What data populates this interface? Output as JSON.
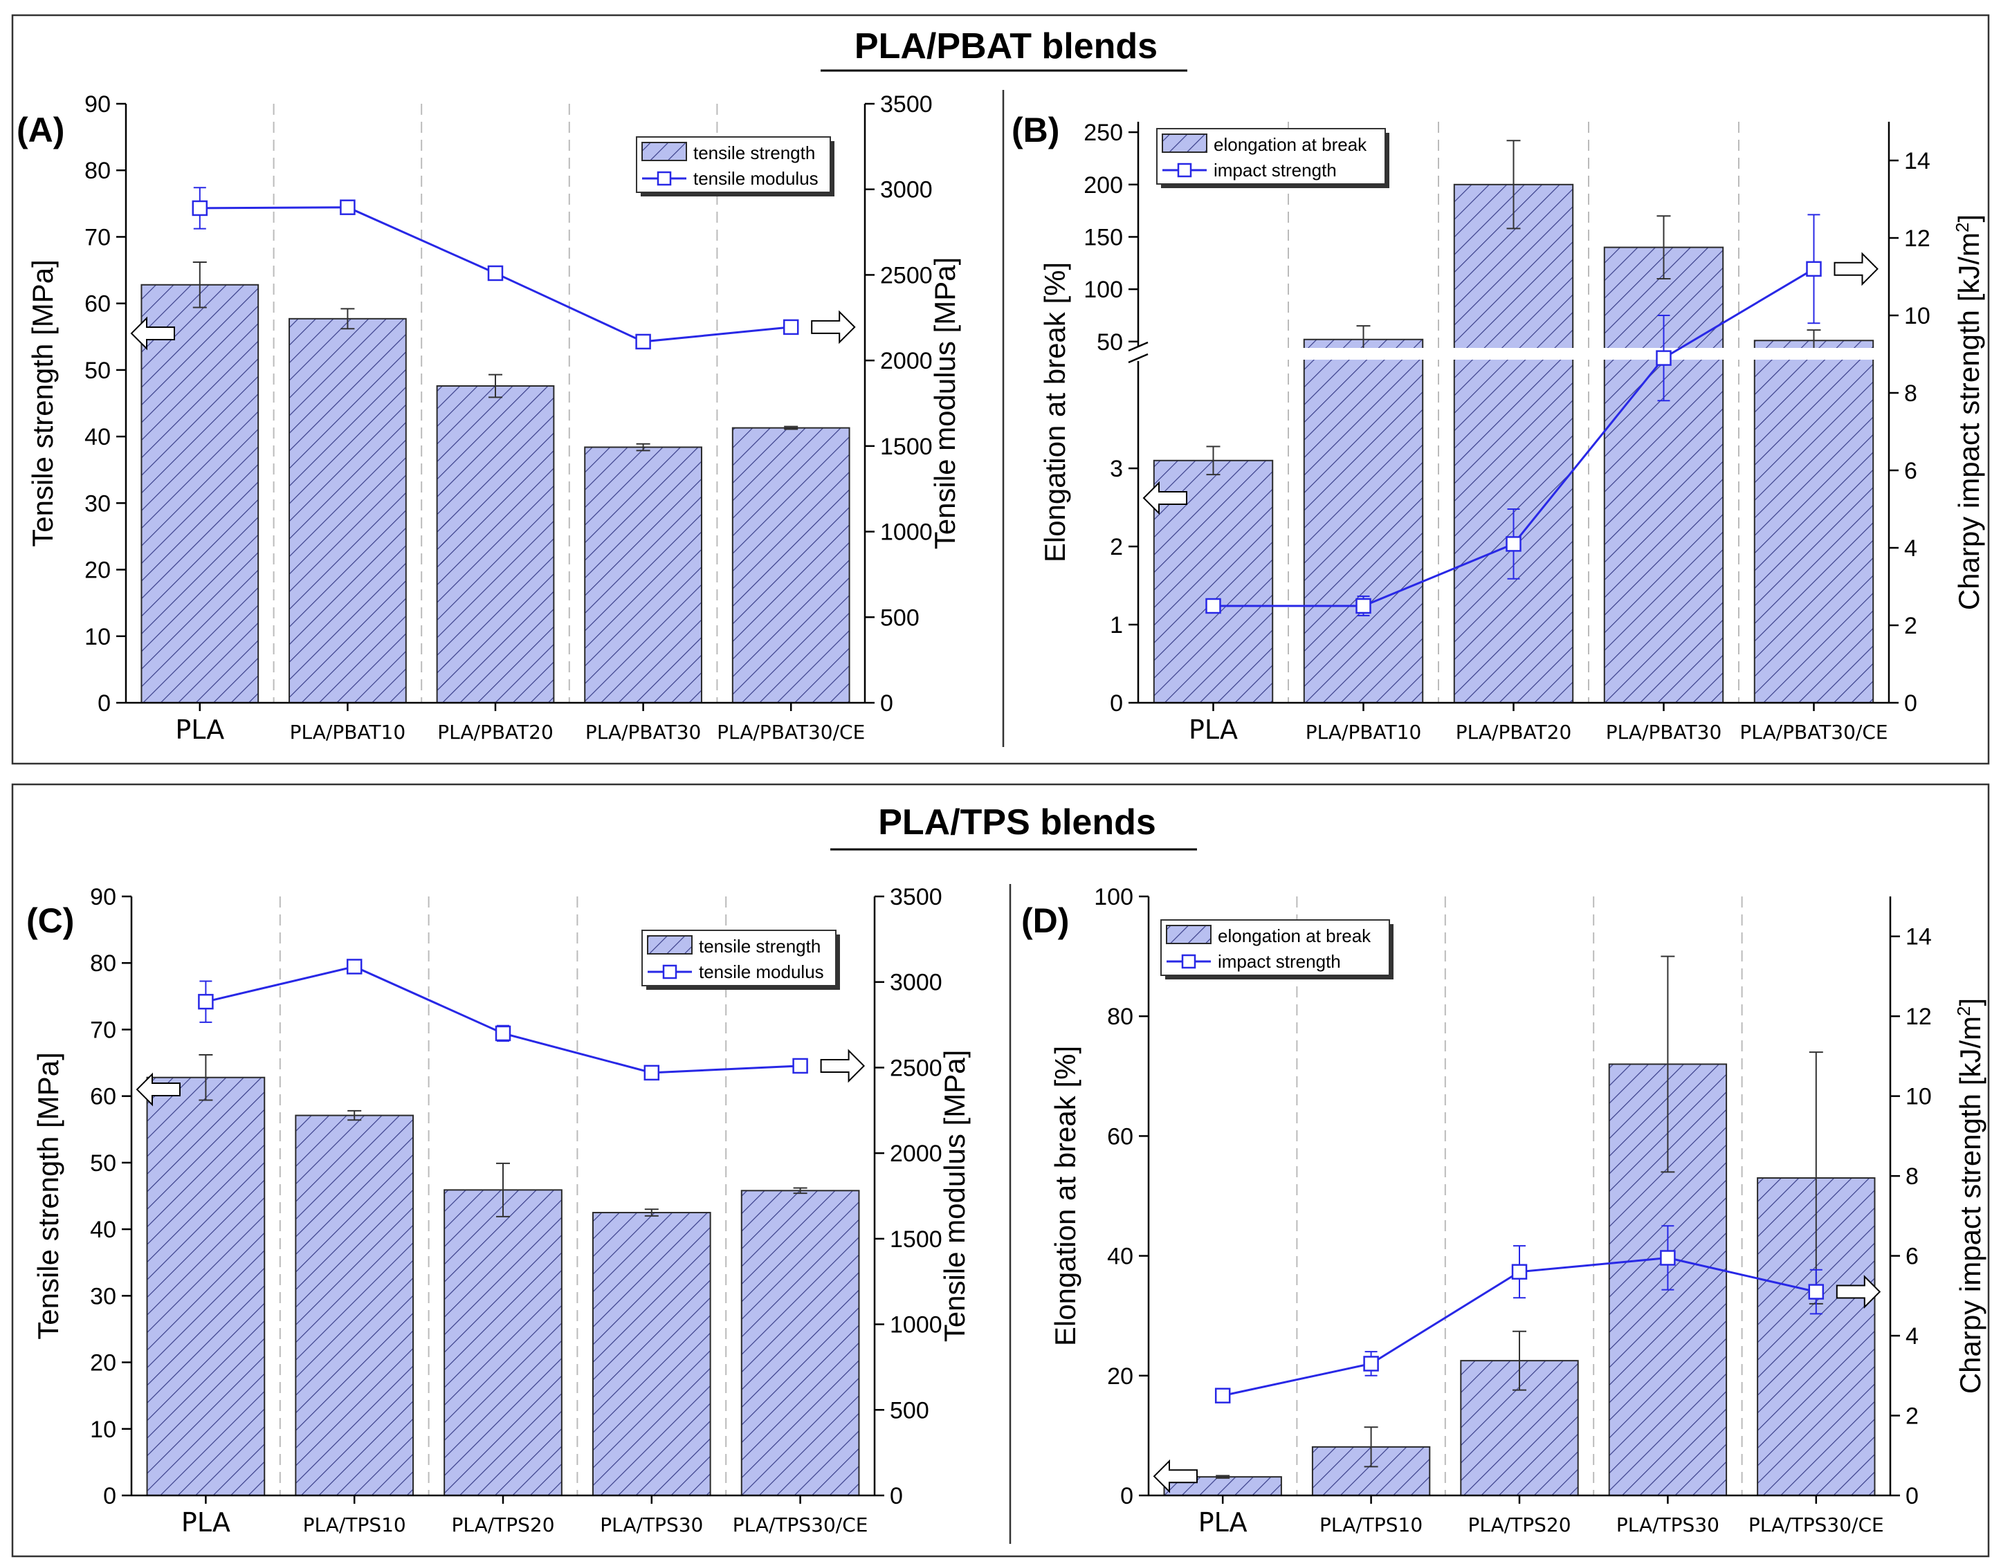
{
  "sections": [
    {
      "title": "PLA/PBAT blends"
    },
    {
      "title": "PLA/TPS blends"
    }
  ],
  "colors": {
    "bar_fill": "#b8bff0",
    "bar_hatch": "#3a3f8a",
    "bar_edge": "#2a2a2a",
    "line": "#2828e6",
    "error": "#333333",
    "divider": "#bbbbbb"
  },
  "chart_data": [
    {
      "panel": "(A)",
      "type": "bar+line",
      "categories": [
        "PLA",
        "PLA/PBAT10",
        "PLA/PBAT20",
        "PLA/PBAT30",
        "PLA/PBAT30/CE"
      ],
      "ylabel": "Tensile strength [MPa]",
      "y2label": "Tensile modulus [MPa]",
      "ylim": [
        0,
        90
      ],
      "yticks": [
        0,
        10,
        20,
        30,
        40,
        50,
        60,
        70,
        80,
        90
      ],
      "y2lim": [
        0,
        3500
      ],
      "y2ticks": [
        0,
        500,
        1000,
        1500,
        2000,
        2500,
        3000,
        3500
      ],
      "bars": {
        "name": "tensile strength",
        "values": [
          62.8,
          57.7,
          47.6,
          38.4,
          41.3
        ],
        "errors": [
          3.4,
          1.5,
          1.7,
          0.5,
          0.2
        ]
      },
      "line": {
        "name": "tensile modulus",
        "values": [
          2890,
          2895,
          2510,
          2110,
          2195
        ],
        "errors": [
          120,
          20,
          15,
          35,
          25
        ]
      },
      "legend": "top-right",
      "arrows": {
        "left_at": 55.5,
        "right_at": 2195
      }
    },
    {
      "panel": "(B)",
      "type": "bar+line",
      "categories": [
        "PLA",
        "PLA/PBAT10",
        "PLA/PBAT20",
        "PLA/PBAT30",
        "PLA/PBAT30/CE"
      ],
      "ylabel": "Elongation at break [%]",
      "y2label": "Charpy impact strength [kJ/m",
      "y2label_sup": "2",
      "y2label_end": "]",
      "axis_break": true,
      "ylim_lower": [
        0,
        3.7
      ],
      "yticks_lower": [
        0,
        1,
        2,
        3
      ],
      "ylim_upper": [
        34,
        260
      ],
      "yticks_upper": [
        50,
        100,
        150,
        200,
        250
      ],
      "y2lim": [
        0,
        15
      ],
      "y2ticks": [
        0,
        2,
        4,
        6,
        8,
        10,
        12,
        14
      ],
      "bars": {
        "name": "elongation at break",
        "values": [
          3.1,
          52,
          200,
          140,
          51
        ],
        "errors": [
          0.18,
          13,
          42,
          30,
          10
        ]
      },
      "line": {
        "name": "impact strength",
        "values": [
          2.5,
          2.5,
          4.1,
          8.9,
          11.2
        ],
        "errors": [
          0.1,
          0.25,
          0.9,
          1.1,
          1.4
        ]
      },
      "legend": "top-left",
      "arrows": {
        "left_at": 2.62,
        "right_at": 11.2
      }
    },
    {
      "panel": "(C)",
      "type": "bar+line",
      "categories": [
        "PLA",
        "PLA/TPS10",
        "PLA/TPS20",
        "PLA/TPS30",
        "PLA/TPS30/CE"
      ],
      "ylabel": "Tensile strength [MPa]",
      "y2label": "Tensile modulus [MPa]",
      "ylim": [
        0,
        90
      ],
      "yticks": [
        0,
        10,
        20,
        30,
        40,
        50,
        60,
        70,
        80,
        90
      ],
      "y2lim": [
        0,
        3500
      ],
      "y2ticks": [
        0,
        500,
        1000,
        1500,
        2000,
        2500,
        3000,
        3500
      ],
      "bars": {
        "name": "tensile strength",
        "values": [
          62.8,
          57.1,
          45.9,
          42.5,
          45.8
        ],
        "errors": [
          3.4,
          0.7,
          4.0,
          0.5,
          0.4
        ]
      },
      "line": {
        "name": "tensile modulus",
        "values": [
          2885,
          3090,
          2700,
          2470,
          2510
        ],
        "errors": [
          120,
          25,
          45,
          25,
          25
        ]
      },
      "legend": "top-right",
      "arrows": {
        "left_at": 61,
        "right_at": 2510
      }
    },
    {
      "panel": "(D)",
      "type": "bar+line",
      "categories": [
        "PLA",
        "PLA/TPS10",
        "PLA/TPS20",
        "PLA/TPS30",
        "PLA/TPS30/CE"
      ],
      "ylabel": "Elongation at break [%]",
      "y2label": "Charpy impact strength [kJ/m",
      "y2label_sup": "2",
      "y2label_end": "]",
      "ylim": [
        0,
        100
      ],
      "yticks": [
        0,
        20,
        40,
        60,
        80,
        100
      ],
      "y2lim": [
        0,
        15
      ],
      "y2ticks": [
        0,
        2,
        4,
        6,
        8,
        10,
        12,
        14
      ],
      "bars": {
        "name": "elongation at break",
        "values": [
          3.1,
          8.1,
          22.5,
          72,
          53
        ],
        "errors": [
          0.2,
          3.3,
          4.9,
          18,
          21
        ]
      },
      "line": {
        "name": "impact strength",
        "values": [
          2.5,
          3.3,
          5.6,
          5.95,
          5.1
        ],
        "errors": [
          0.1,
          0.3,
          0.65,
          0.8,
          0.55
        ]
      },
      "legend": "top-left",
      "arrows": {
        "left_at": 3.2,
        "right_at": 5.1
      }
    }
  ]
}
